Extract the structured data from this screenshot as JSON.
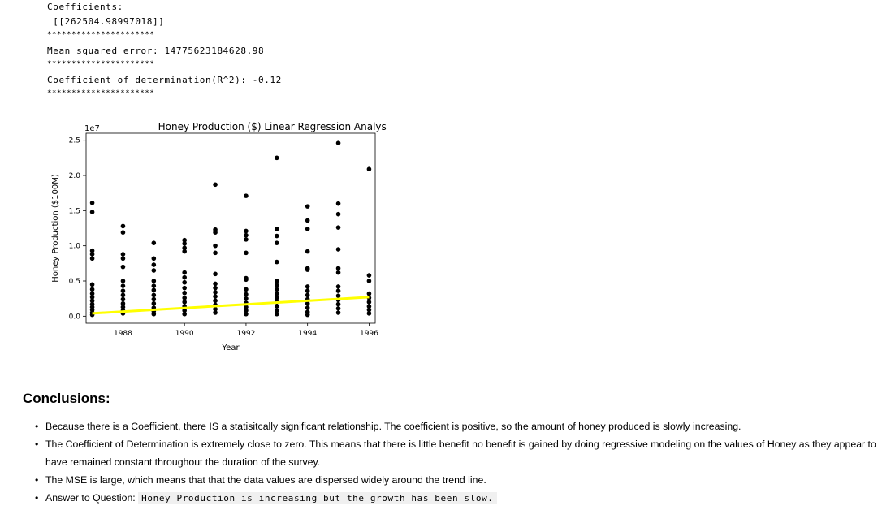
{
  "output": {
    "line1": "Coefficients:",
    "line2": " [[262504.98997018]]",
    "sep1": "**********************",
    "line3": "Mean squared error: 14775623184628.98",
    "sep2": "**********************",
    "line4": "Coefficient of determination(R^2): -0.12",
    "sep3": "**********************"
  },
  "chart_data": {
    "type": "scatter",
    "title": "Honey Production ($) Linear Regression Analysis",
    "offset_label": "1e7",
    "xlabel": "Year",
    "ylabel": "Honey Production ($100M)",
    "xlim": [
      1986.8,
      1996.2
    ],
    "ylim": [
      -0.1,
      2.6
    ],
    "xticks": [
      "1988",
      "1990",
      "1992",
      "1994",
      "1996"
    ],
    "yticks": [
      "0.0",
      "0.5",
      "1.0",
      "1.5",
      "2.0",
      "2.5"
    ],
    "point_color": "#000000",
    "line_color": "#ffff00",
    "regression_line": {
      "x": [
        1987,
        1996
      ],
      "y": [
        0.04,
        0.27
      ]
    },
    "points": [
      {
        "x": 1987,
        "y": 1.61
      },
      {
        "x": 1987,
        "y": 1.48
      },
      {
        "x": 1987,
        "y": 0.93
      },
      {
        "x": 1987,
        "y": 0.88
      },
      {
        "x": 1987,
        "y": 0.82
      },
      {
        "x": 1987,
        "y": 0.45
      },
      {
        "x": 1987,
        "y": 0.38
      },
      {
        "x": 1987,
        "y": 0.32
      },
      {
        "x": 1987,
        "y": 0.27
      },
      {
        "x": 1987,
        "y": 0.22
      },
      {
        "x": 1987,
        "y": 0.17
      },
      {
        "x": 1987,
        "y": 0.13
      },
      {
        "x": 1987,
        "y": 0.09
      },
      {
        "x": 1987,
        "y": 0.05
      },
      {
        "x": 1987,
        "y": 0.02
      },
      {
        "x": 1988,
        "y": 1.28
      },
      {
        "x": 1988,
        "y": 1.19
      },
      {
        "x": 1988,
        "y": 0.88
      },
      {
        "x": 1988,
        "y": 0.82
      },
      {
        "x": 1988,
        "y": 0.7
      },
      {
        "x": 1988,
        "y": 0.5
      },
      {
        "x": 1988,
        "y": 0.43
      },
      {
        "x": 1988,
        "y": 0.36
      },
      {
        "x": 1988,
        "y": 0.3
      },
      {
        "x": 1988,
        "y": 0.24
      },
      {
        "x": 1988,
        "y": 0.18
      },
      {
        "x": 1988,
        "y": 0.13
      },
      {
        "x": 1988,
        "y": 0.08
      },
      {
        "x": 1988,
        "y": 0.04
      },
      {
        "x": 1989,
        "y": 1.04
      },
      {
        "x": 1989,
        "y": 0.82
      },
      {
        "x": 1989,
        "y": 0.73
      },
      {
        "x": 1989,
        "y": 0.65
      },
      {
        "x": 1989,
        "y": 0.5
      },
      {
        "x": 1989,
        "y": 0.43
      },
      {
        "x": 1989,
        "y": 0.37
      },
      {
        "x": 1989,
        "y": 0.3
      },
      {
        "x": 1989,
        "y": 0.24
      },
      {
        "x": 1989,
        "y": 0.18
      },
      {
        "x": 1989,
        "y": 0.12
      },
      {
        "x": 1989,
        "y": 0.07
      },
      {
        "x": 1989,
        "y": 0.03
      },
      {
        "x": 1990,
        "y": 1.08
      },
      {
        "x": 1990,
        "y": 1.03
      },
      {
        "x": 1990,
        "y": 0.97
      },
      {
        "x": 1990,
        "y": 0.92
      },
      {
        "x": 1990,
        "y": 0.62
      },
      {
        "x": 1990,
        "y": 0.55
      },
      {
        "x": 1990,
        "y": 0.48
      },
      {
        "x": 1990,
        "y": 0.4
      },
      {
        "x": 1990,
        "y": 0.33
      },
      {
        "x": 1990,
        "y": 0.26
      },
      {
        "x": 1990,
        "y": 0.2
      },
      {
        "x": 1990,
        "y": 0.14
      },
      {
        "x": 1990,
        "y": 0.08
      },
      {
        "x": 1990,
        "y": 0.03
      },
      {
        "x": 1991,
        "y": 1.87
      },
      {
        "x": 1991,
        "y": 1.23
      },
      {
        "x": 1991,
        "y": 1.19
      },
      {
        "x": 1991,
        "y": 1.0
      },
      {
        "x": 1991,
        "y": 0.9
      },
      {
        "x": 1991,
        "y": 0.6
      },
      {
        "x": 1991,
        "y": 0.46
      },
      {
        "x": 1991,
        "y": 0.4
      },
      {
        "x": 1991,
        "y": 0.34
      },
      {
        "x": 1991,
        "y": 0.28
      },
      {
        "x": 1991,
        "y": 0.22
      },
      {
        "x": 1991,
        "y": 0.16
      },
      {
        "x": 1991,
        "y": 0.1
      },
      {
        "x": 1991,
        "y": 0.05
      },
      {
        "x": 1992,
        "y": 1.71
      },
      {
        "x": 1992,
        "y": 1.21
      },
      {
        "x": 1992,
        "y": 1.15
      },
      {
        "x": 1992,
        "y": 1.09
      },
      {
        "x": 1992,
        "y": 0.9
      },
      {
        "x": 1992,
        "y": 0.54
      },
      {
        "x": 1992,
        "y": 0.52
      },
      {
        "x": 1992,
        "y": 0.38
      },
      {
        "x": 1992,
        "y": 0.31
      },
      {
        "x": 1992,
        "y": 0.25
      },
      {
        "x": 1992,
        "y": 0.19
      },
      {
        "x": 1992,
        "y": 0.13
      },
      {
        "x": 1992,
        "y": 0.08
      },
      {
        "x": 1992,
        "y": 0.03
      },
      {
        "x": 1993,
        "y": 2.25
      },
      {
        "x": 1993,
        "y": 1.24
      },
      {
        "x": 1993,
        "y": 1.14
      },
      {
        "x": 1993,
        "y": 1.04
      },
      {
        "x": 1993,
        "y": 0.77
      },
      {
        "x": 1993,
        "y": 0.5
      },
      {
        "x": 1993,
        "y": 0.44
      },
      {
        "x": 1993,
        "y": 0.38
      },
      {
        "x": 1993,
        "y": 0.32
      },
      {
        "x": 1993,
        "y": 0.26
      },
      {
        "x": 1993,
        "y": 0.2
      },
      {
        "x": 1993,
        "y": 0.14
      },
      {
        "x": 1993,
        "y": 0.08
      },
      {
        "x": 1993,
        "y": 0.03
      },
      {
        "x": 1994,
        "y": 1.56
      },
      {
        "x": 1994,
        "y": 1.36
      },
      {
        "x": 1994,
        "y": 1.24
      },
      {
        "x": 1994,
        "y": 0.92
      },
      {
        "x": 1994,
        "y": 0.68
      },
      {
        "x": 1994,
        "y": 0.66
      },
      {
        "x": 1994,
        "y": 0.42
      },
      {
        "x": 1994,
        "y": 0.36
      },
      {
        "x": 1994,
        "y": 0.3
      },
      {
        "x": 1994,
        "y": 0.24
      },
      {
        "x": 1994,
        "y": 0.18
      },
      {
        "x": 1994,
        "y": 0.12
      },
      {
        "x": 1994,
        "y": 0.06
      },
      {
        "x": 1994,
        "y": 0.02
      },
      {
        "x": 1995,
        "y": 2.46
      },
      {
        "x": 1995,
        "y": 1.6
      },
      {
        "x": 1995,
        "y": 1.45
      },
      {
        "x": 1995,
        "y": 1.26
      },
      {
        "x": 1995,
        "y": 0.95
      },
      {
        "x": 1995,
        "y": 0.68
      },
      {
        "x": 1995,
        "y": 0.62
      },
      {
        "x": 1995,
        "y": 0.42
      },
      {
        "x": 1995,
        "y": 0.36
      },
      {
        "x": 1995,
        "y": 0.29
      },
      {
        "x": 1995,
        "y": 0.23
      },
      {
        "x": 1995,
        "y": 0.17
      },
      {
        "x": 1995,
        "y": 0.11
      },
      {
        "x": 1995,
        "y": 0.05
      },
      {
        "x": 1996,
        "y": 2.09
      },
      {
        "x": 1996,
        "y": 0.58
      },
      {
        "x": 1996,
        "y": 0.5
      },
      {
        "x": 1996,
        "y": 0.32
      },
      {
        "x": 1996,
        "y": 0.26
      },
      {
        "x": 1996,
        "y": 0.2
      },
      {
        "x": 1996,
        "y": 0.14
      },
      {
        "x": 1996,
        "y": 0.09
      },
      {
        "x": 1996,
        "y": 0.04
      }
    ]
  },
  "conclusions": {
    "heading": "Conclusions:",
    "b1": "Because there is a Coefficient, there IS a statisitcally significant relationship. The coefficient is positive, so the amount of honey produced is slowly increasing.",
    "b2": "The Coefficient of Determination is extremely close to zero. This means that there is little benefit no benefit is gained by doing regressive modeling on the values of Honey as they appear to have remained constant throughout the duration of the survey.",
    "b3": "The MSE is large, which means that that the data values are dispersed widely around the trend line.",
    "b4_prefix": "Answer to Question: ",
    "b4_code": "Honey Production is increasing but the growth has been slow."
  }
}
